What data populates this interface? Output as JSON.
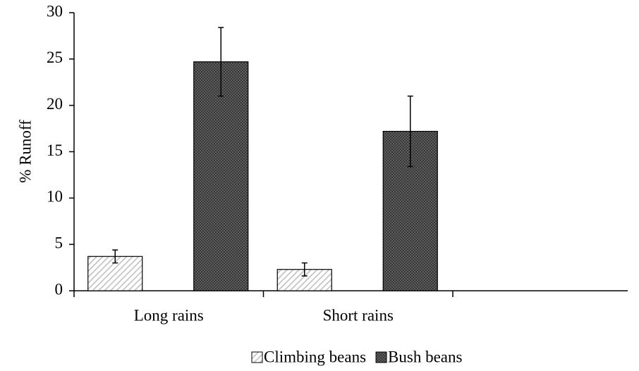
{
  "chart_data": {
    "type": "bar",
    "y_label": "% Runoff",
    "categories": [
      "Long rains",
      "Short rains",
      null
    ],
    "series": [
      {
        "name": "Climbing beans",
        "color": "#bdbdbd",
        "values": [
          3.7,
          2.3,
          null
        ],
        "errors": [
          0.7,
          0.7,
          null
        ]
      },
      {
        "name": "Bush beans",
        "color": "#6e6e6e",
        "values": [
          24.7,
          17.2,
          null
        ],
        "errors": [
          3.7,
          3.8,
          null
        ]
      }
    ],
    "ylim": [
      0,
      30
    ],
    "yticks": [
      0,
      5,
      10,
      15,
      20,
      25,
      30
    ],
    "legend": "bottom"
  }
}
